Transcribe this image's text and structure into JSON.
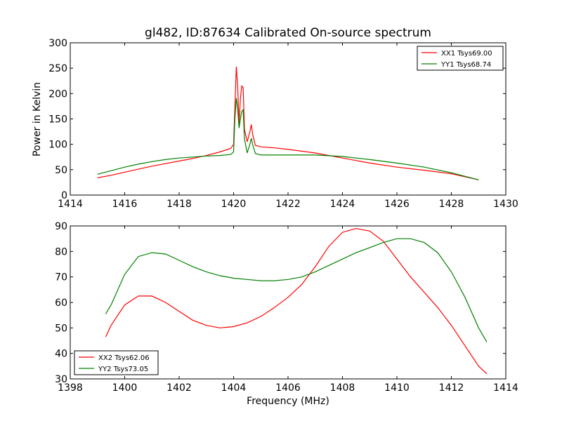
{
  "figure": {
    "title": "gl482, ID:87634 Calibrated On-source spectrum",
    "xlabel": "Frequency (MHz)",
    "colors": {
      "red": "#ff0000",
      "green": "#008000"
    }
  },
  "chart_data": [
    {
      "type": "line",
      "title": "gl482, ID:87634 Calibrated On-source spectrum",
      "xlabel": "",
      "ylabel": "Power in Kelvin",
      "xlim": [
        1414,
        1430
      ],
      "ylim": [
        0,
        300
      ],
      "xticks": [
        "1414",
        "1416",
        "1418",
        "1420",
        "1422",
        "1424",
        "1426",
        "1428",
        "1430"
      ],
      "yticks": [
        "0",
        "50",
        "100",
        "150",
        "200",
        "250",
        "300"
      ],
      "legend_position": "top-right",
      "series": [
        {
          "name": "XX1 Tsys69.00",
          "color": "#ff0000",
          "points": [
            [
              1415.0,
              34
            ],
            [
              1415.5,
              39
            ],
            [
              1416.0,
              45
            ],
            [
              1416.5,
              51
            ],
            [
              1417.0,
              57
            ],
            [
              1417.5,
              62
            ],
            [
              1418.0,
              67
            ],
            [
              1418.5,
              72
            ],
            [
              1419.0,
              78
            ],
            [
              1419.5,
              85
            ],
            [
              1419.9,
              92
            ],
            [
              1420.0,
              100
            ],
            [
              1420.05,
              175
            ],
            [
              1420.1,
              253
            ],
            [
              1420.15,
              215
            ],
            [
              1420.2,
              140
            ],
            [
              1420.25,
              190
            ],
            [
              1420.3,
              215
            ],
            [
              1420.35,
              212
            ],
            [
              1420.4,
              130
            ],
            [
              1420.5,
              105
            ],
            [
              1420.6,
              125
            ],
            [
              1420.65,
              139
            ],
            [
              1420.7,
              120
            ],
            [
              1420.8,
              98
            ],
            [
              1421.0,
              95
            ],
            [
              1421.5,
              93
            ],
            [
              1422.0,
              90
            ],
            [
              1423.0,
              83
            ],
            [
              1424.0,
              73
            ],
            [
              1425.0,
              63
            ],
            [
              1426.0,
              55
            ],
            [
              1427.0,
              49
            ],
            [
              1428.0,
              42
            ],
            [
              1429.0,
              30
            ]
          ]
        },
        {
          "name": "YY1 Tsys68.74",
          "color": "#008000",
          "points": [
            [
              1415.0,
              41
            ],
            [
              1415.5,
              48
            ],
            [
              1416.0,
              55
            ],
            [
              1416.5,
              61
            ],
            [
              1417.0,
              66
            ],
            [
              1417.5,
              70
            ],
            [
              1418.0,
              73
            ],
            [
              1418.5,
              75
            ],
            [
              1419.0,
              77
            ],
            [
              1419.5,
              78
            ],
            [
              1419.9,
              80
            ],
            [
              1420.0,
              85
            ],
            [
              1420.05,
              150
            ],
            [
              1420.1,
              191
            ],
            [
              1420.15,
              170
            ],
            [
              1420.2,
              132
            ],
            [
              1420.25,
              150
            ],
            [
              1420.3,
              165
            ],
            [
              1420.35,
              168
            ],
            [
              1420.4,
              110
            ],
            [
              1420.5,
              83
            ],
            [
              1420.6,
              100
            ],
            [
              1420.65,
              112
            ],
            [
              1420.7,
              100
            ],
            [
              1420.8,
              82
            ],
            [
              1421.0,
              79
            ],
            [
              1422.0,
              79
            ],
            [
              1423.0,
              79
            ],
            [
              1424.0,
              76
            ],
            [
              1425.0,
              70
            ],
            [
              1426.0,
              63
            ],
            [
              1427.0,
              55
            ],
            [
              1428.0,
              44
            ],
            [
              1429.0,
              30
            ]
          ]
        }
      ]
    },
    {
      "type": "line",
      "title": "",
      "xlabel": "Frequency (MHz)",
      "ylabel": "",
      "xlim": [
        1398,
        1414
      ],
      "ylim": [
        30,
        90
      ],
      "xticks": [
        "1398",
        "1400",
        "1402",
        "1404",
        "1406",
        "1408",
        "1410",
        "1412",
        "1414"
      ],
      "yticks": [
        "30",
        "40",
        "50",
        "60",
        "70",
        "80",
        "90"
      ],
      "legend_position": "bottom-left",
      "series": [
        {
          "name": "XX2 Tsys62.06",
          "color": "#ff0000",
          "points": [
            [
              1399.3,
              46.5
            ],
            [
              1399.5,
              51
            ],
            [
              1400.0,
              59
            ],
            [
              1400.5,
              62.5
            ],
            [
              1401.0,
              62.5
            ],
            [
              1401.5,
              60
            ],
            [
              1402.0,
              56.5
            ],
            [
              1402.5,
              53
            ],
            [
              1403.0,
              51
            ],
            [
              1403.5,
              50
            ],
            [
              1404.0,
              50.5
            ],
            [
              1404.5,
              52
            ],
            [
              1405.0,
              54.5
            ],
            [
              1405.5,
              58
            ],
            [
              1406.0,
              62
            ],
            [
              1406.5,
              67
            ],
            [
              1407.0,
              74
            ],
            [
              1407.5,
              82
            ],
            [
              1408.0,
              87.5
            ],
            [
              1408.5,
              89
            ],
            [
              1409.0,
              88
            ],
            [
              1409.5,
              84
            ],
            [
              1410.0,
              77
            ],
            [
              1410.5,
              70
            ],
            [
              1411.0,
              64
            ],
            [
              1411.5,
              58
            ],
            [
              1412.0,
              51
            ],
            [
              1412.5,
              43
            ],
            [
              1413.0,
              35
            ],
            [
              1413.3,
              32
            ]
          ]
        },
        {
          "name": "YY2 Tsys73.05",
          "color": "#008000",
          "points": [
            [
              1399.3,
              55.5
            ],
            [
              1399.5,
              59
            ],
            [
              1400.0,
              71
            ],
            [
              1400.5,
              78
            ],
            [
              1401.0,
              79.5
            ],
            [
              1401.5,
              79
            ],
            [
              1402.0,
              76.5
            ],
            [
              1402.5,
              74
            ],
            [
              1403.0,
              72
            ],
            [
              1403.5,
              70.5
            ],
            [
              1404.0,
              69.5
            ],
            [
              1404.5,
              69
            ],
            [
              1405.0,
              68.5
            ],
            [
              1405.5,
              68.5
            ],
            [
              1406.0,
              69
            ],
            [
              1406.5,
              70
            ],
            [
              1407.0,
              72
            ],
            [
              1407.5,
              74.5
            ],
            [
              1408.0,
              77
            ],
            [
              1408.5,
              79.5
            ],
            [
              1409.0,
              81.5
            ],
            [
              1409.5,
              83.5
            ],
            [
              1410.0,
              85
            ],
            [
              1410.5,
              85
            ],
            [
              1411.0,
              83.5
            ],
            [
              1411.5,
              79.5
            ],
            [
              1412.0,
              72
            ],
            [
              1412.5,
              62
            ],
            [
              1413.0,
              50
            ],
            [
              1413.3,
              44.5
            ]
          ]
        }
      ]
    }
  ]
}
